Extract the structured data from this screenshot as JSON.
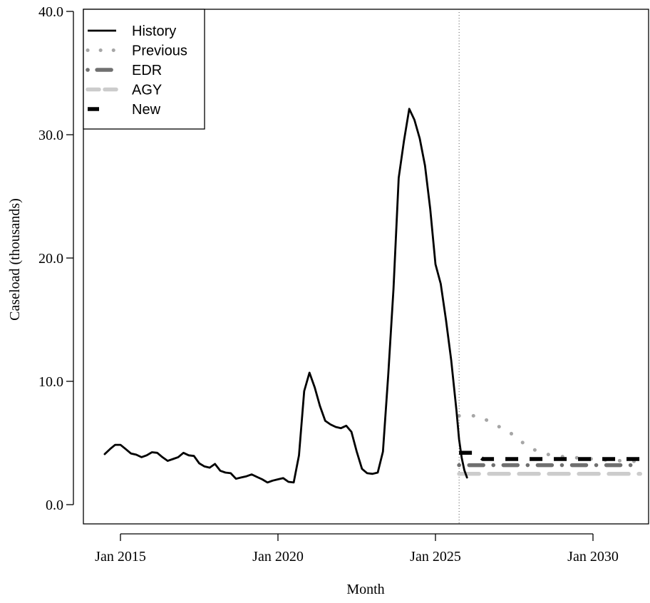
{
  "chart_data": {
    "type": "line",
    "xlabel": "Month",
    "ylabel": "Caseload (thousands)",
    "ylim": [
      0,
      40
    ],
    "xlim": [
      "2013-10",
      "2031-08"
    ],
    "y_ticks": [
      "0.0",
      "10.0",
      "20.0",
      "30.0",
      "40.0"
    ],
    "x_ticks": [
      {
        "date": "2015-01",
        "label": "Jan 2015"
      },
      {
        "date": "2020-01",
        "label": "Jan 2020"
      },
      {
        "date": "2025-01",
        "label": "Jan 2025"
      },
      {
        "date": "2030-01",
        "label": "Jan 2030"
      }
    ],
    "forecast_start": "2025-10",
    "legend_position": "top-left",
    "series": [
      {
        "name": "History",
        "style": "solid",
        "color": "#000000",
        "points": [
          [
            "2014-07",
            4.1
          ],
          [
            "2014-09",
            4.5
          ],
          [
            "2014-11",
            4.85
          ],
          [
            "2015-01",
            4.85
          ],
          [
            "2015-03",
            4.5
          ],
          [
            "2015-05",
            4.15
          ],
          [
            "2015-07",
            4.05
          ],
          [
            "2015-09",
            3.85
          ],
          [
            "2015-11",
            4.0
          ],
          [
            "2016-01",
            4.25
          ],
          [
            "2016-03",
            4.2
          ],
          [
            "2016-05",
            3.85
          ],
          [
            "2016-07",
            3.55
          ],
          [
            "2016-09",
            3.7
          ],
          [
            "2016-11",
            3.85
          ],
          [
            "2017-01",
            4.2
          ],
          [
            "2017-03",
            4.0
          ],
          [
            "2017-05",
            3.95
          ],
          [
            "2017-07",
            3.35
          ],
          [
            "2017-09",
            3.1
          ],
          [
            "2017-11",
            3.0
          ],
          [
            "2018-01",
            3.3
          ],
          [
            "2018-03",
            2.75
          ],
          [
            "2018-05",
            2.6
          ],
          [
            "2018-07",
            2.55
          ],
          [
            "2018-09",
            2.1
          ],
          [
            "2018-11",
            2.2
          ],
          [
            "2019-01",
            2.3
          ],
          [
            "2019-03",
            2.45
          ],
          [
            "2019-05",
            2.25
          ],
          [
            "2019-07",
            2.05
          ],
          [
            "2019-09",
            1.8
          ],
          [
            "2019-11",
            1.95
          ],
          [
            "2020-01",
            2.05
          ],
          [
            "2020-03",
            2.15
          ],
          [
            "2020-05",
            1.85
          ],
          [
            "2020-07",
            1.8
          ],
          [
            "2020-09",
            4.0
          ],
          [
            "2020-11",
            9.2
          ],
          [
            "2021-01",
            10.7
          ],
          [
            "2021-03",
            9.5
          ],
          [
            "2021-05",
            8.0
          ],
          [
            "2021-07",
            6.8
          ],
          [
            "2021-09",
            6.5
          ],
          [
            "2021-11",
            6.3
          ],
          [
            "2022-01",
            6.2
          ],
          [
            "2022-03",
            6.4
          ],
          [
            "2022-05",
            5.9
          ],
          [
            "2022-07",
            4.3
          ],
          [
            "2022-09",
            2.9
          ],
          [
            "2022-11",
            2.55
          ],
          [
            "2023-01",
            2.5
          ],
          [
            "2023-03",
            2.6
          ],
          [
            "2023-05",
            4.3
          ],
          [
            "2023-07",
            10.5
          ],
          [
            "2023-09",
            17.5
          ],
          [
            "2023-11",
            26.5
          ],
          [
            "2024-01",
            29.5
          ],
          [
            "2024-03",
            32.1
          ],
          [
            "2024-05",
            31.2
          ],
          [
            "2024-07",
            29.7
          ],
          [
            "2024-09",
            27.5
          ],
          [
            "2024-11",
            24.0
          ],
          [
            "2025-01",
            19.5
          ],
          [
            "2025-03",
            17.9
          ],
          [
            "2025-05",
            15.0
          ],
          [
            "2025-07",
            11.7
          ],
          [
            "2025-09",
            7.6
          ],
          [
            "2025-10",
            5.3
          ],
          [
            "2025-11",
            3.8
          ],
          [
            "2025-12",
            2.8
          ],
          [
            "2026-01",
            2.2
          ]
        ]
      },
      {
        "name": "Previous",
        "style": "dotted",
        "color": "#a6a6a6",
        "points": [
          [
            "2025-10",
            7.2
          ],
          [
            "2026-06",
            7.2
          ],
          [
            "2026-11",
            6.5
          ],
          [
            "2027-04",
            6.1
          ],
          [
            "2027-09",
            5.2
          ],
          [
            "2028-02",
            4.5
          ],
          [
            "2028-07",
            4.1
          ],
          [
            "2029-01",
            3.9
          ],
          [
            "2029-07",
            3.8
          ],
          [
            "2030-01",
            3.7
          ],
          [
            "2030-07",
            3.6
          ],
          [
            "2031-07",
            3.5
          ]
        ]
      },
      {
        "name": "EDR",
        "style": "dashdot",
        "color": "#707070",
        "points": [
          [
            "2025-10",
            3.2
          ],
          [
            "2031-07",
            3.2
          ]
        ]
      },
      {
        "name": "AGY",
        "style": "longdash",
        "color": "#cccccc",
        "points": [
          [
            "2025-10",
            2.5
          ],
          [
            "2031-07",
            2.5
          ]
        ]
      },
      {
        "name": "New",
        "style": "dashed",
        "color": "#000000",
        "points": [
          [
            "2025-10",
            4.2
          ],
          [
            "2026-04",
            4.2
          ],
          [
            "2026-07",
            3.7
          ],
          [
            "2031-07",
            3.7
          ]
        ]
      }
    ]
  }
}
